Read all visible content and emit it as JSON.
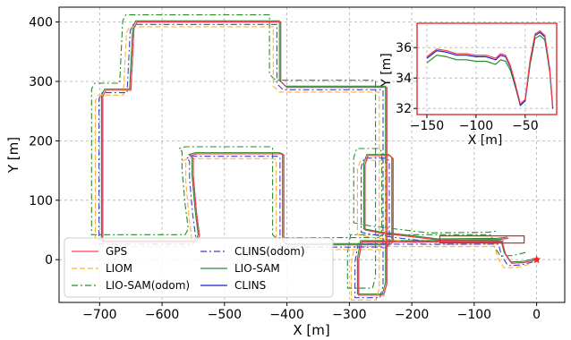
{
  "chart_data": {
    "type": "line",
    "grid": true,
    "main": {
      "xlabel": "X [m]",
      "ylabel": "Y [m]",
      "xlim": [
        -765,
        45
      ],
      "ylim": [
        -72,
        425
      ],
      "xticks": [
        -700,
        -600,
        -500,
        -400,
        -300,
        -200,
        -100,
        0
      ],
      "yticks": [
        0,
        100,
        200,
        300,
        400
      ],
      "start_marker": {
        "x": 0,
        "y": 0
      }
    },
    "inset": {
      "xlabel": "X [m]",
      "ylabel": "Y [m]",
      "xlim": [
        -160,
        -18
      ],
      "ylim": [
        31.6,
        37.6
      ],
      "xticks": [
        -150,
        -100,
        -50
      ],
      "yticks": [
        32,
        34,
        36
      ]
    },
    "zoom_box": {
      "x": [
        -155,
        -20
      ],
      "y": [
        28,
        40
      ]
    },
    "legend": {
      "placement": "lower-left",
      "entries": [
        {
          "label": "GPS",
          "color": "#ff4040",
          "dash": "solid"
        },
        {
          "label": "CLINS(odom)",
          "color": "#4040d0",
          "dash": "dashdot"
        },
        {
          "label": "LIOM",
          "color": "#ffb030",
          "dash": "dashed"
        },
        {
          "label": "LIO-SAM",
          "color": "#2a8a2a",
          "dash": "solid"
        },
        {
          "label": "LIO-SAM(odom)",
          "color": "#2a8a2a",
          "dash": "dashdot"
        },
        {
          "label": "CLINS",
          "color": "#1e1ecc",
          "dash": "solid"
        }
      ]
    },
    "series": [
      {
        "name": "GPS",
        "color": "#ff4040",
        "dash": "solid",
        "offset": [
          0,
          0
        ],
        "x": [
          0,
          -20,
          -40,
          -50,
          -55,
          -200,
          -280,
          -285,
          -285,
          -245,
          -240,
          -240,
          -400,
          -410,
          -410,
          -640,
          -645,
          -650,
          -690,
          -695,
          -695,
          -680,
          -545,
          -540,
          -545,
          -550,
          -550,
          -555,
          -545,
          -410,
          -405,
          -405,
          -400,
          -235,
          -230,
          -230,
          -235,
          -270,
          -275,
          -275,
          -250,
          -155,
          -60,
          -45
        ],
        "y": [
          0,
          -5,
          -6,
          10,
          30,
          30,
          30,
          0,
          -60,
          -60,
          -40,
          290,
          290,
          300,
          400,
          400,
          390,
          285,
          285,
          275,
          30,
          30,
          30,
          40,
          80,
          140,
          170,
          175,
          178,
          178,
          176,
          30,
          25,
          25,
          30,
          170,
          175,
          175,
          160,
          50,
          45,
          33,
          34,
          36
        ]
      },
      {
        "name": "CLINS",
        "color": "#1e1ecc",
        "dash": "solid",
        "offset": [
          0,
          0
        ],
        "x": [
          0,
          -20,
          -40,
          -50,
          -55,
          -200,
          -280,
          -285,
          -285,
          -245,
          -240,
          -240,
          -400,
          -410,
          -410,
          -640,
          -645,
          -650,
          -690,
          -695,
          -695,
          -680,
          -545,
          -540,
          -545,
          -550,
          -550,
          -555,
          -545,
          -410,
          -405,
          -405,
          -400,
          -235,
          -230,
          -230,
          -235,
          -270,
          -275,
          -275,
          -250,
          -155,
          -60,
          -45
        ],
        "y": [
          0,
          -5,
          -6,
          10,
          30,
          30,
          30,
          0,
          -60,
          -60,
          -40,
          290,
          290,
          300,
          400,
          400,
          390,
          285,
          285,
          275,
          30,
          30,
          30,
          40,
          80,
          140,
          170,
          175,
          178,
          178,
          176,
          30,
          25,
          25,
          30,
          170,
          175,
          175,
          160,
          50,
          45,
          33,
          34,
          36
        ]
      },
      {
        "name": "CLINS(odom)",
        "color": "#4040d0",
        "dash": "dashdot",
        "offset": [
          -6,
          -4
        ],
        "x": [
          0,
          -20,
          -40,
          -50,
          -55,
          -200,
          -280,
          -285,
          -285,
          -245,
          -240,
          -240,
          -400,
          -410,
          -410,
          -640,
          -645,
          -650,
          -690,
          -695,
          -695,
          -680,
          -545,
          -540,
          -545,
          -550,
          -550,
          -555,
          -545,
          -410,
          -405,
          -405,
          -400,
          -235,
          -230,
          -230,
          -235,
          -270,
          -275,
          -275,
          -250,
          -155,
          -60,
          -45
        ],
        "y": [
          0,
          -5,
          -6,
          10,
          30,
          30,
          30,
          0,
          -60,
          -60,
          -40,
          290,
          290,
          300,
          400,
          400,
          390,
          285,
          285,
          275,
          30,
          30,
          30,
          40,
          80,
          140,
          170,
          175,
          178,
          178,
          176,
          30,
          25,
          25,
          30,
          170,
          175,
          175,
          160,
          50,
          45,
          33,
          34,
          36
        ]
      },
      {
        "name": "LIOM",
        "color": "#ffb030",
        "dash": "dashed",
        "offset": [
          -12,
          -8
        ],
        "x": [
          0,
          -20,
          -40,
          -50,
          -55,
          -200,
          -280,
          -285,
          -285,
          -245,
          -240,
          -240,
          -400,
          -410,
          -410,
          -640,
          -645,
          -650,
          -690,
          -695,
          -695,
          -680,
          -545,
          -540,
          -545,
          -550,
          -550,
          -555,
          -545,
          -410,
          -405,
          -405,
          -400,
          -235,
          -230,
          -230,
          -235,
          -270,
          -275,
          -275,
          -250,
          -155,
          -60,
          -45
        ],
        "y": [
          0,
          -5,
          -6,
          10,
          30,
          30,
          30,
          0,
          -60,
          -60,
          -40,
          290,
          290,
          300,
          400,
          400,
          390,
          285,
          285,
          275,
          30,
          30,
          30,
          40,
          80,
          140,
          170,
          175,
          178,
          178,
          176,
          30,
          25,
          25,
          30,
          170,
          175,
          175,
          160,
          50,
          45,
          33,
          34,
          36
        ]
      },
      {
        "name": "LIO-SAM",
        "color": "#2a8a2a",
        "dash": "solid",
        "offset": [
          -2,
          2
        ],
        "x": [
          0,
          -20,
          -40,
          -50,
          -55,
          -200,
          -280,
          -285,
          -285,
          -245,
          -240,
          -240,
          -400,
          -410,
          -410,
          -640,
          -645,
          -650,
          -690,
          -695,
          -695,
          -680,
          -545,
          -540,
          -545,
          -550,
          -550,
          -555,
          -545,
          -410,
          -405,
          -405,
          -400,
          -235,
          -230,
          -230,
          -235,
          -270,
          -275,
          -275,
          -250,
          -155,
          -60,
          -45
        ],
        "y": [
          0,
          -5,
          -6,
          10,
          30,
          30,
          30,
          0,
          -60,
          -60,
          -40,
          290,
          290,
          300,
          400,
          400,
          390,
          285,
          285,
          275,
          30,
          30,
          30,
          40,
          80,
          140,
          170,
          175,
          178,
          178,
          176,
          30,
          25,
          25,
          30,
          170,
          175,
          175,
          160,
          50,
          45,
          33,
          34,
          36
        ]
      },
      {
        "name": "LIO-SAM(odom)",
        "color": "#2a8a2a",
        "dash": "dashdot",
        "offset": [
          -18,
          12
        ],
        "x": [
          0,
          -20,
          -40,
          -50,
          -55,
          -200,
          -280,
          -285,
          -285,
          -245,
          -240,
          -240,
          -400,
          -410,
          -410,
          -640,
          -645,
          -650,
          -690,
          -695,
          -695,
          -680,
          -545,
          -540,
          -545,
          -550,
          -550,
          -555,
          -545,
          -410,
          -405,
          -405,
          -400,
          -235,
          -230,
          -230,
          -235,
          -270,
          -275,
          -275,
          -250,
          -155,
          -60,
          -45
        ],
        "y": [
          0,
          -5,
          -6,
          10,
          30,
          30,
          30,
          0,
          -60,
          -60,
          -40,
          290,
          290,
          300,
          400,
          400,
          390,
          285,
          285,
          275,
          30,
          30,
          30,
          40,
          80,
          140,
          170,
          175,
          178,
          178,
          176,
          30,
          25,
          25,
          30,
          170,
          175,
          175,
          160,
          50,
          45,
          33,
          34,
          36
        ]
      }
    ],
    "inset_series": [
      {
        "name": "GPS",
        "color": "#ff4040",
        "x": [
          -150,
          -140,
          -130,
          -120,
          -110,
          -100,
          -90,
          -80,
          -75,
          -70,
          -65,
          -60,
          -55,
          -50,
          -45,
          -40,
          -35,
          -30,
          -25,
          -22
        ],
        "y": [
          35.4,
          35.9,
          35.8,
          35.6,
          35.6,
          35.5,
          35.5,
          35.3,
          35.6,
          35.5,
          34.8,
          33.6,
          32.3,
          32.6,
          35.2,
          36.9,
          37.1,
          36.8,
          34.6,
          32.1
        ]
      },
      {
        "name": "CLINS",
        "color": "#1e1ecc",
        "x": [
          -150,
          -140,
          -130,
          -120,
          -110,
          -100,
          -90,
          -80,
          -75,
          -70,
          -65,
          -60,
          -55,
          -50,
          -45,
          -40,
          -35,
          -30,
          -25,
          -22
        ],
        "y": [
          35.3,
          35.8,
          35.7,
          35.5,
          35.5,
          35.4,
          35.4,
          35.2,
          35.5,
          35.4,
          34.7,
          33.5,
          32.2,
          32.5,
          35.1,
          36.8,
          37.0,
          36.7,
          34.5,
          32.0
        ]
      },
      {
        "name": "LIO-SAM",
        "color": "#2a8a2a",
        "x": [
          -150,
          -140,
          -130,
          -120,
          -110,
          -100,
          -90,
          -80,
          -75,
          -70,
          -65,
          -60,
          -55,
          -50,
          -45,
          -40,
          -35,
          -30,
          -25,
          -22
        ],
        "y": [
          35.0,
          35.5,
          35.4,
          35.2,
          35.2,
          35.1,
          35.1,
          34.9,
          35.2,
          35.1,
          34.5,
          33.4,
          32.2,
          32.5,
          34.9,
          36.6,
          36.8,
          36.5,
          34.4,
          32.1
        ]
      }
    ]
  }
}
